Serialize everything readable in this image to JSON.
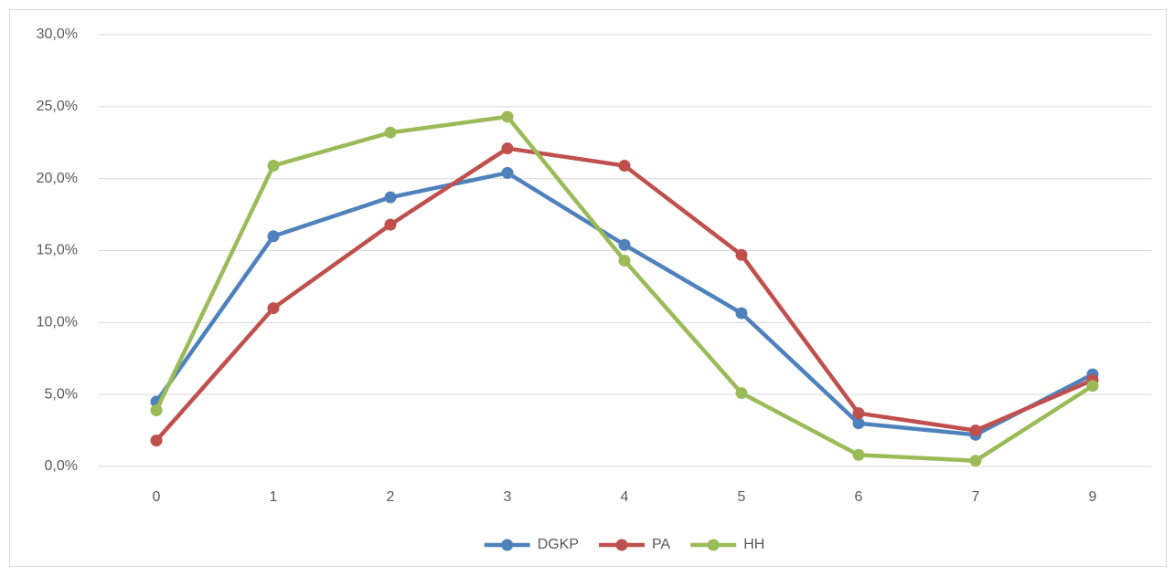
{
  "chart_data": {
    "type": "line",
    "categories": [
      "0",
      "1",
      "2",
      "3",
      "4",
      "5",
      "6",
      "7",
      "9"
    ],
    "series": [
      {
        "name": "DGKP",
        "color": "#4f81bd",
        "values": [
          4.5,
          16.0,
          18.7,
          20.4,
          15.4,
          10.65,
          3.0,
          2.2,
          6.4
        ]
      },
      {
        "name": "PA",
        "color": "#c0504d",
        "values": [
          1.8,
          11.0,
          16.8,
          22.1,
          20.9,
          14.7,
          3.7,
          2.5,
          6.0
        ]
      },
      {
        "name": "HH",
        "color": "#9bbb59",
        "values": [
          3.9,
          20.9,
          23.2,
          24.3,
          14.3,
          5.1,
          0.8,
          0.4,
          5.6
        ]
      }
    ],
    "ylim": [
      0,
      30
    ],
    "yticks": [
      {
        "value": 0,
        "label": "0,0%"
      },
      {
        "value": 5,
        "label": "5,0%"
      },
      {
        "value": 10,
        "label": "10,0%"
      },
      {
        "value": 15,
        "label": "15,0%"
      },
      {
        "value": 20,
        "label": "20,0%"
      },
      {
        "value": 25,
        "label": "25,0%"
      },
      {
        "value": 30,
        "label": "30,0%"
      }
    ],
    "grid": true,
    "legend": "bottom"
  }
}
